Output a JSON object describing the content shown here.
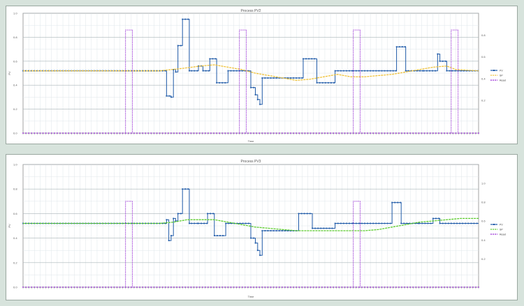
{
  "chart_data": [
    {
      "type": "line",
      "title": "Process PV2",
      "xlabel": "Time",
      "ylabel": "PV",
      "y2label": "",
      "ylim": [
        0,
        1.0
      ],
      "y2lim": [
        0,
        1.0
      ],
      "yticks": [
        "1.0",
        "0.8",
        "0.6",
        "0.4",
        "0.2",
        "0.0"
      ],
      "y2ticks": [
        "0.8",
        "0.6",
        "0.4",
        "0.2"
      ],
      "n_points": 160,
      "legend_placement": "right",
      "grid": true,
      "series": [
        {
          "name": "PV",
          "color": "#1f5aa8",
          "style": "step-dots",
          "segments": [
            [
              0,
              60,
              0.52
            ],
            [
              60,
              63,
              0.52
            ],
            [
              63,
              65,
              0.31
            ],
            [
              65,
              66,
              0.3
            ],
            [
              66,
              67,
              0.53
            ],
            [
              67,
              68,
              0.51
            ],
            [
              68,
              70,
              0.73
            ],
            [
              70,
              73,
              0.95
            ],
            [
              73,
              74,
              0.52
            ],
            [
              74,
              77,
              0.52
            ],
            [
              77,
              79,
              0.56
            ],
            [
              79,
              82,
              0.52
            ],
            [
              82,
              85,
              0.62
            ],
            [
              85,
              90,
              0.42
            ],
            [
              90,
              100,
              0.52
            ],
            [
              100,
              102,
              0.38
            ],
            [
              102,
              103,
              0.32
            ],
            [
              103,
              104,
              0.28
            ],
            [
              104,
              105,
              0.24
            ],
            [
              105,
              110,
              0.46
            ],
            [
              110,
              123,
              0.46
            ],
            [
              123,
              129,
              0.62
            ],
            [
              129,
              137,
              0.42
            ],
            [
              137,
              145,
              0.52
            ],
            [
              145,
              164,
              0.52
            ],
            [
              164,
              168,
              0.72
            ],
            [
              168,
              176,
              0.52
            ],
            [
              176,
              182,
              0.52
            ],
            [
              182,
              183,
              0.66
            ],
            [
              183,
              186,
              0.6
            ],
            [
              186,
              200,
              0.52
            ]
          ]
        },
        {
          "name": "SP",
          "color": "#f0c23a",
          "style": "line",
          "points": [
            [
              0,
              0.52
            ],
            [
              60,
              0.52
            ],
            [
              70,
              0.54
            ],
            [
              78,
              0.56
            ],
            [
              84,
              0.57
            ],
            [
              90,
              0.55
            ],
            [
              96,
              0.53
            ],
            [
              102,
              0.5
            ],
            [
              108,
              0.48
            ],
            [
              114,
              0.46
            ],
            [
              120,
              0.44
            ],
            [
              126,
              0.45
            ],
            [
              132,
              0.47
            ],
            [
              138,
              0.49
            ],
            [
              144,
              0.47
            ],
            [
              150,
              0.47
            ],
            [
              156,
              0.48
            ],
            [
              162,
              0.49
            ],
            [
              168,
              0.51
            ],
            [
              174,
              0.53
            ],
            [
              180,
              0.55
            ],
            [
              186,
              0.56
            ],
            [
              190,
              0.53
            ],
            [
              200,
              0.52
            ]
          ]
        },
        {
          "name": "Reset",
          "color": "#9a2fd6",
          "style": "pulse-dots",
          "baseline": 0.0,
          "pulses": [
            [
              45,
              48,
              0.86
            ],
            [
              95,
              98,
              0.86
            ],
            [
              145,
              148,
              0.86
            ],
            [
              188,
              191,
              0.86
            ]
          ]
        }
      ]
    },
    {
      "type": "line",
      "title": "Process PV3",
      "xlabel": "Time",
      "ylabel": "PV",
      "y2label": "",
      "ylim": [
        0,
        1.0
      ],
      "y2lim": [
        0,
        1.0
      ],
      "yticks": [
        "1.0",
        "0.8",
        "0.6",
        "0.4",
        "0.2",
        "0.0"
      ],
      "y2ticks": [
        "1.0",
        "0.8",
        "0.6",
        "0.4",
        "0.2"
      ],
      "n_points": 160,
      "legend_placement": "right",
      "grid": true,
      "series": [
        {
          "name": "PV",
          "color": "#1f5aa8",
          "style": "step-dots",
          "segments": [
            [
              0,
              60,
              0.52
            ],
            [
              60,
              63,
              0.52
            ],
            [
              63,
              64,
              0.55
            ],
            [
              64,
              65,
              0.38
            ],
            [
              65,
              66,
              0.42
            ],
            [
              66,
              67,
              0.56
            ],
            [
              67,
              68,
              0.54
            ],
            [
              68,
              70,
              0.6
            ],
            [
              70,
              73,
              0.8
            ],
            [
              73,
              74,
              0.52
            ],
            [
              74,
              77,
              0.52
            ],
            [
              77,
              81,
              0.52
            ],
            [
              81,
              84,
              0.6
            ],
            [
              84,
              89,
              0.42
            ],
            [
              89,
              100,
              0.52
            ],
            [
              100,
              102,
              0.4
            ],
            [
              102,
              103,
              0.36
            ],
            [
              103,
              104,
              0.3
            ],
            [
              104,
              105,
              0.26
            ],
            [
              105,
              110,
              0.46
            ],
            [
              110,
              121,
              0.46
            ],
            [
              121,
              127,
              0.6
            ],
            [
              127,
              137,
              0.48
            ],
            [
              137,
              145,
              0.52
            ],
            [
              145,
              162,
              0.52
            ],
            [
              162,
              166,
              0.69
            ],
            [
              166,
              174,
              0.52
            ],
            [
              174,
              180,
              0.52
            ],
            [
              180,
              183,
              0.56
            ],
            [
              183,
              200,
              0.52
            ]
          ]
        },
        {
          "name": "SP",
          "color": "#5ccc2e",
          "style": "line",
          "points": [
            [
              0,
              0.52
            ],
            [
              60,
              0.52
            ],
            [
              66,
              0.53
            ],
            [
              72,
              0.55
            ],
            [
              78,
              0.55
            ],
            [
              84,
              0.55
            ],
            [
              90,
              0.53
            ],
            [
              96,
              0.51
            ],
            [
              102,
              0.49
            ],
            [
              108,
              0.48
            ],
            [
              114,
              0.47
            ],
            [
              120,
              0.46
            ],
            [
              126,
              0.46
            ],
            [
              132,
              0.46
            ],
            [
              138,
              0.46
            ],
            [
              144,
              0.46
            ],
            [
              150,
              0.46
            ],
            [
              156,
              0.47
            ],
            [
              162,
              0.49
            ],
            [
              168,
              0.51
            ],
            [
              174,
              0.53
            ],
            [
              180,
              0.54
            ],
            [
              186,
              0.55
            ],
            [
              192,
              0.56
            ],
            [
              200,
              0.56
            ]
          ]
        },
        {
          "name": "Reset",
          "color": "#9a2fd6",
          "style": "pulse-dots",
          "baseline": 0.0,
          "pulses": [
            [
              45,
              48,
              0.7
            ],
            [
              145,
              148,
              0.7
            ]
          ]
        }
      ]
    }
  ]
}
